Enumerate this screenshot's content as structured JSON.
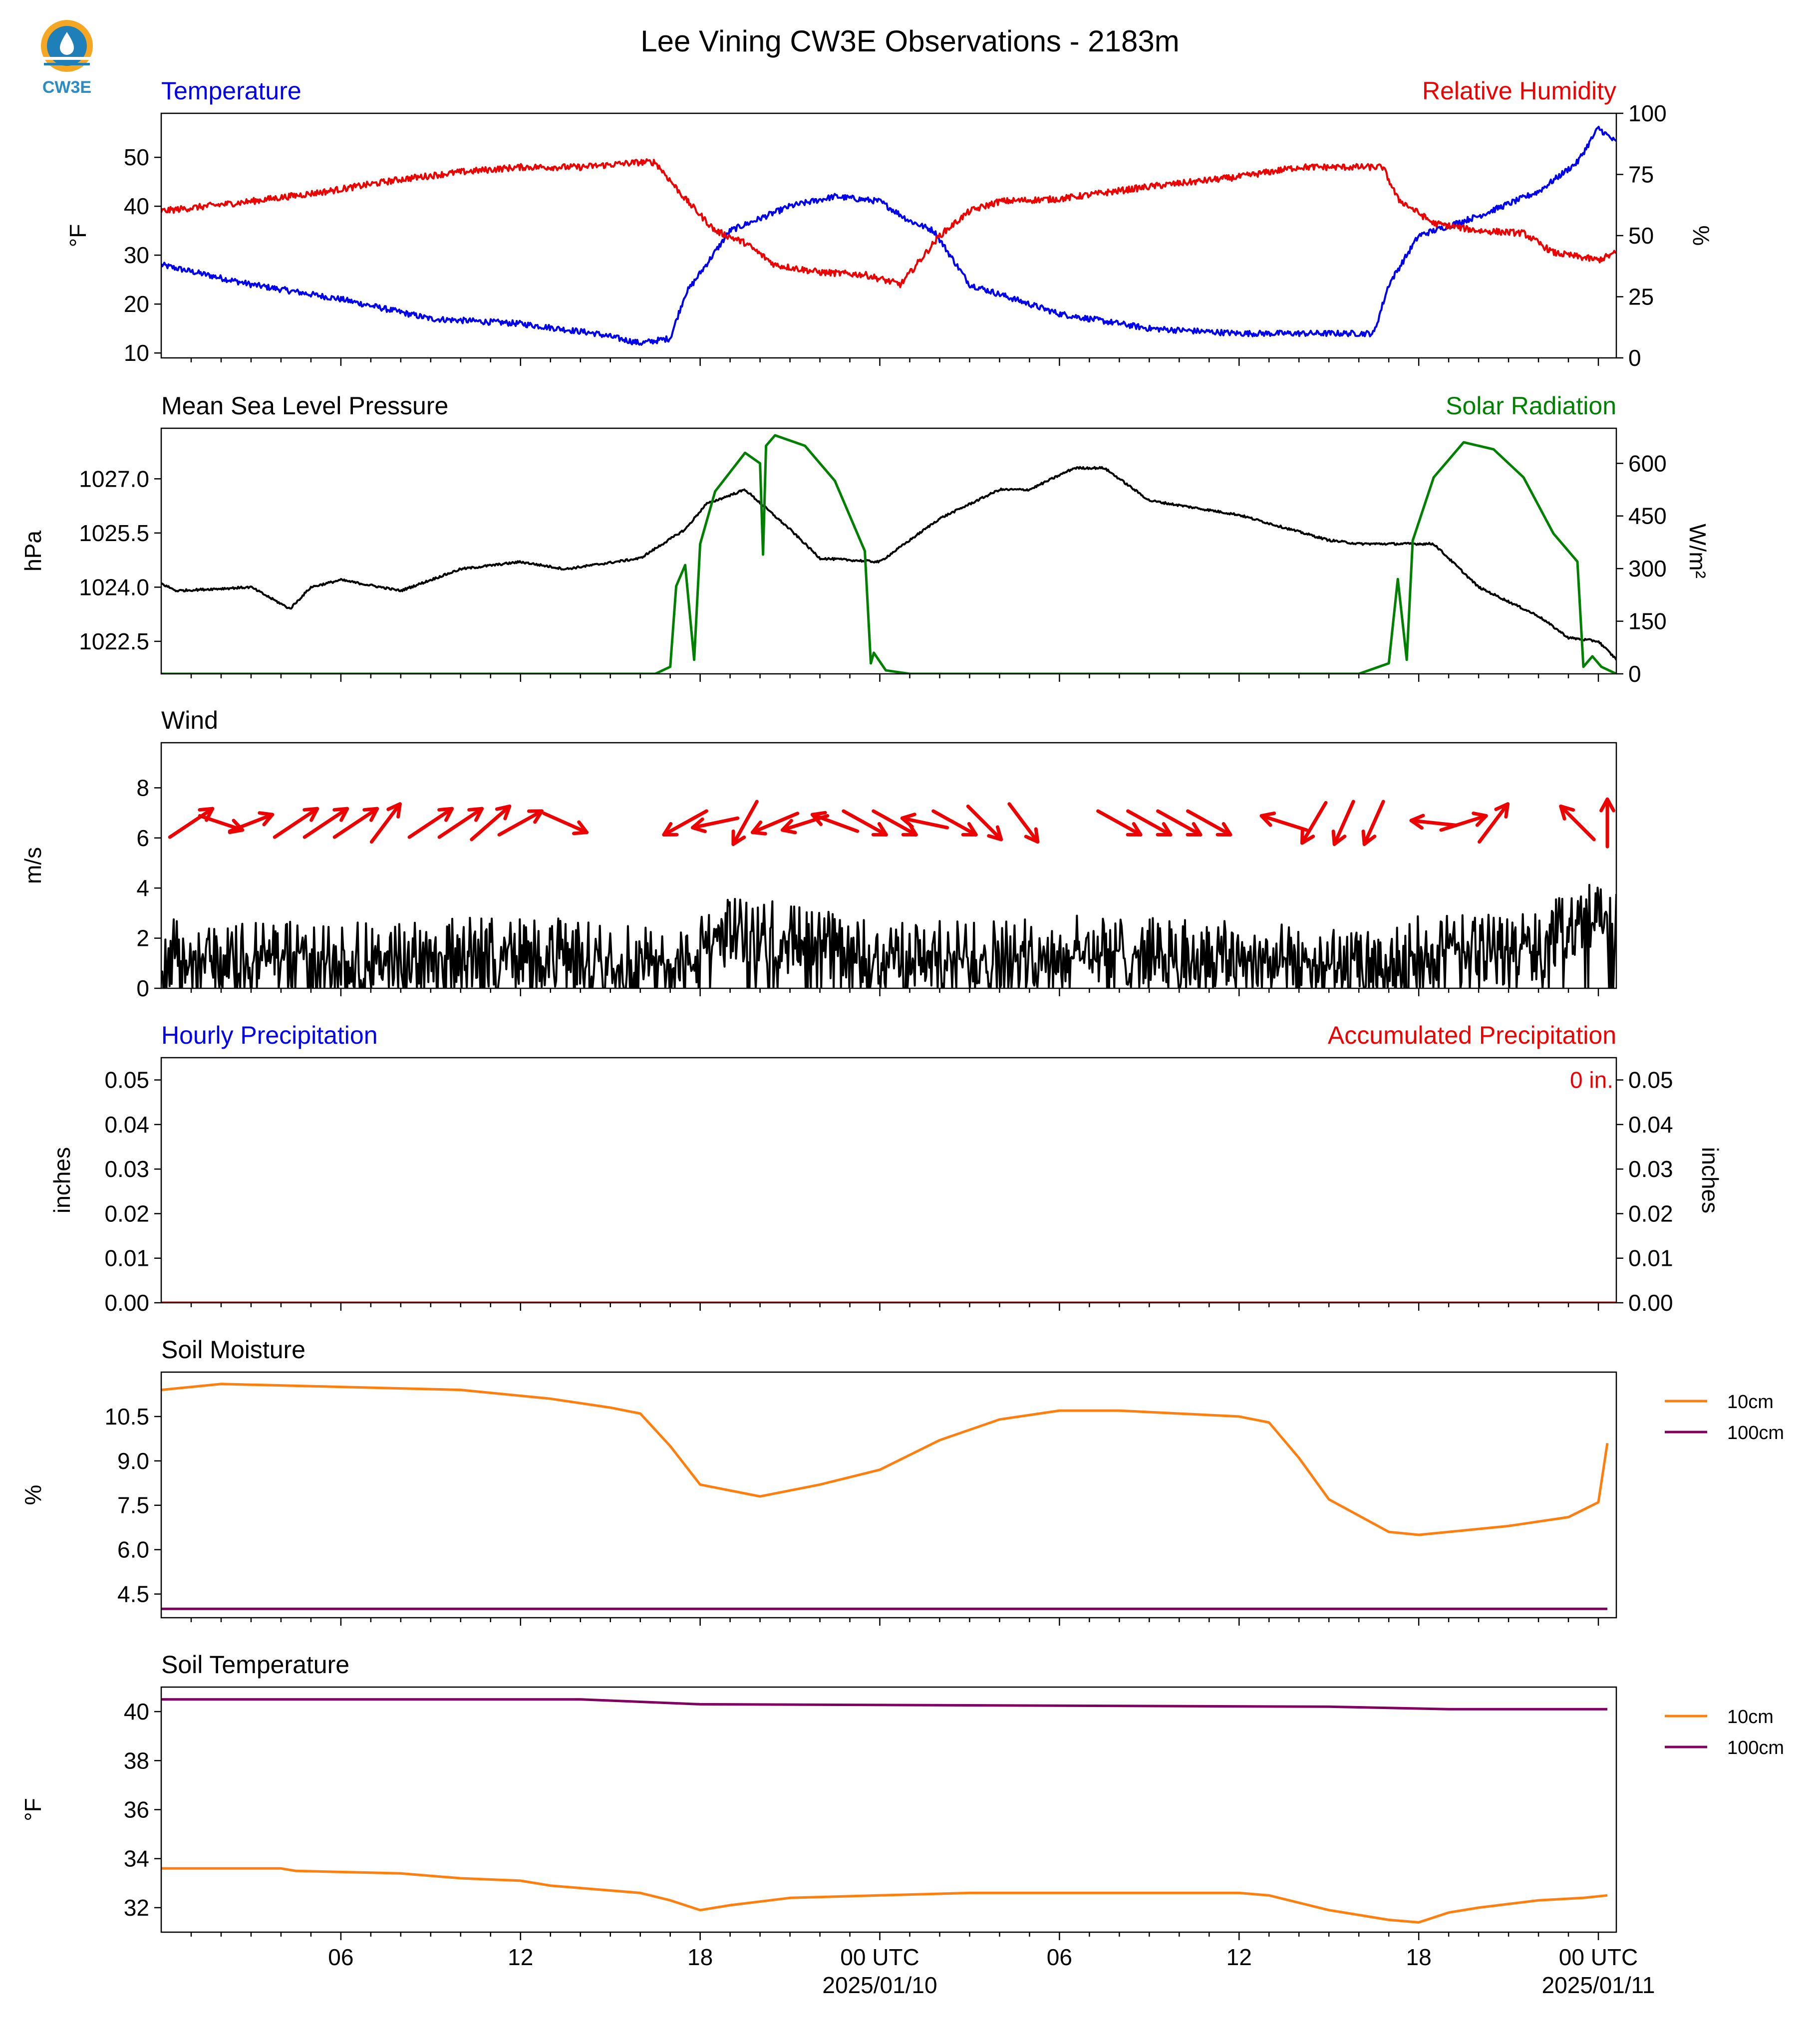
{
  "title": "Lee Vining CW3E Observations - 2183m",
  "logo": {
    "text": "CW3E",
    "icon": "cw3e-droplet-logo-icon"
  },
  "colors": {
    "blue": "#0000ee",
    "red": "#ee0000",
    "green": "#008000",
    "black": "#000000",
    "orange": "#ff7f0e",
    "purple": "#800060"
  },
  "x_axis": {
    "range_hours": [
      -24,
      24.6
    ],
    "ticks": [
      {
        "h": -18,
        "label": "06",
        "sub": ""
      },
      {
        "h": -12,
        "label": "12",
        "sub": ""
      },
      {
        "h": -6,
        "label": "18",
        "sub": ""
      },
      {
        "h": 0,
        "label": "00 UTC",
        "sub": "2025/01/10"
      },
      {
        "h": 6,
        "label": "06",
        "sub": ""
      },
      {
        "h": 12,
        "label": "12",
        "sub": ""
      },
      {
        "h": 18,
        "label": "18",
        "sub": ""
      },
      {
        "h": 24,
        "label": "00 UTC",
        "sub": "2025/01/11"
      }
    ]
  },
  "chart_data": [
    {
      "type": "line",
      "title_left": "Temperature",
      "title_right": "Relative Humidity",
      "ylabel_left": "°F",
      "ylabel_right": "%",
      "ylim_left": [
        9,
        59
      ],
      "ylim_right": [
        0,
        100
      ],
      "yticks_left": [
        10,
        20,
        30,
        40,
        50
      ],
      "yticks_right": [
        0,
        25,
        50,
        75,
        100
      ],
      "series": [
        {
          "axis": "left",
          "color": "#0000ee",
          "noise": 0.6,
          "x": [
            -24,
            -21,
            -18,
            -15,
            -12,
            -9.5,
            -8,
            -7,
            -6.5,
            -5,
            -3,
            -1.5,
            0,
            1,
            1.8,
            3,
            6,
            9,
            12,
            15,
            16.5,
            17,
            18,
            20,
            22,
            23.3,
            24,
            24.6
          ],
          "y": [
            28,
            24,
            21,
            17,
            16,
            14,
            12,
            13,
            22,
            35,
            40,
            42,
            41,
            37,
            35,
            24,
            18,
            15,
            14,
            14,
            14,
            24,
            34,
            38,
            43,
            49,
            56,
            53
          ]
        },
        {
          "axis": "right",
          "color": "#ee0000",
          "noise": 1.3,
          "x": [
            -24,
            -21,
            -18.5,
            -16,
            -14,
            -12,
            -10,
            -8,
            -7.5,
            -6.5,
            -5.5,
            -4.5,
            -3.5,
            -2,
            -0.5,
            0.7,
            2,
            3,
            4,
            6,
            9,
            12,
            14,
            15.5,
            16.8,
            17.3,
            18.5,
            20,
            21.5,
            22.5,
            24,
            24.6
          ],
          "y": [
            60,
            64,
            68,
            73,
            76,
            78,
            78,
            80,
            80,
            65,
            52,
            47,
            38,
            35,
            34,
            30,
            50,
            60,
            64,
            65,
            70,
            74,
            78,
            78,
            78,
            65,
            55,
            52,
            51,
            43,
            40,
            43
          ]
        }
      ]
    },
    {
      "type": "line",
      "title_left": "Mean Sea Level Pressure",
      "title_right": "Solar Radiation",
      "ylabel_left": "hPa",
      "ylabel_right": "W/m²",
      "ylim_left": [
        1021.6,
        1028.4
      ],
      "ylim_right": [
        0,
        700
      ],
      "yticks_left": [
        1022.5,
        1024.0,
        1025.5,
        1027.0
      ],
      "yticks_right": [
        0,
        150,
        300,
        450,
        600
      ],
      "series": [
        {
          "axis": "left",
          "color": "#000000",
          "noise": 0.03,
          "x": [
            -24,
            -23.5,
            -21,
            -19.7,
            -19,
            -18,
            -16,
            -14,
            -12,
            -10.5,
            -8,
            -6.5,
            -5.8,
            -4.5,
            -3,
            -2,
            0,
            2,
            4,
            5,
            6.5,
            7.5,
            9,
            12,
            15,
            16,
            18.5,
            20,
            22,
            23,
            24,
            24.6
          ],
          "y": [
            1024.1,
            1023.9,
            1024.0,
            1023.4,
            1024.0,
            1024.2,
            1023.9,
            1024.5,
            1024.7,
            1024.5,
            1024.8,
            1025.6,
            1026.3,
            1026.7,
            1025.6,
            1024.8,
            1024.7,
            1025.9,
            1026.7,
            1026.7,
            1027.3,
            1027.3,
            1026.4,
            1026.0,
            1025.3,
            1025.2,
            1025.2,
            1024.0,
            1023.2,
            1022.6,
            1022.5,
            1022.0
          ]
        },
        {
          "axis": "right",
          "color": "#008000",
          "noise": 0,
          "x": [
            -24,
            -7.5,
            -7,
            -6.8,
            -6.5,
            -6.2,
            -6.0,
            -5.5,
            -4.5,
            -4.0,
            -3.9,
            -3.8,
            -3.5,
            -2.5,
            -1.5,
            -0.5,
            -0.3,
            -0.2,
            0.2,
            1,
            16,
            17,
            17.3,
            17.6,
            17.8,
            18.5,
            19.5,
            20.5,
            21.5,
            22.5,
            23.3,
            23.5,
            23.8,
            24.1,
            24.6
          ],
          "y": [
            0,
            0,
            20,
            250,
            310,
            40,
            370,
            520,
            630,
            600,
            340,
            650,
            680,
            650,
            550,
            350,
            30,
            60,
            10,
            0,
            0,
            30,
            270,
            40,
            380,
            560,
            660,
            640,
            560,
            400,
            320,
            20,
            50,
            20,
            0
          ]
        }
      ]
    },
    {
      "type": "line",
      "title_left": "Wind",
      "ylabel_left": "m/s",
      "ylim_left": [
        0,
        9.8
      ],
      "yticks_left": [
        0,
        2,
        4,
        6,
        8
      ],
      "series": [
        {
          "axis": "left",
          "color": "#000000",
          "noise": 1.1,
          "floor": 0,
          "x": [
            -24,
            -18,
            -12,
            -7.5,
            -6.5,
            -5,
            -3,
            0,
            6,
            12,
            17,
            18,
            22,
            23.5,
            24.6
          ],
          "y": [
            1.4,
            1.2,
            1.5,
            1.0,
            1.0,
            2.4,
            2.0,
            1.2,
            1.5,
            1.3,
            0.8,
            1.5,
            1.6,
            3.0,
            2.5
          ]
        }
      ],
      "barbs": [
        {
          "h": -23,
          "u": 0.9,
          "v": 0.6
        },
        {
          "h": -22,
          "u": 0.9,
          "v": -0.3
        },
        {
          "h": -21,
          "u": 0.9,
          "v": 0.35
        },
        {
          "h": -19.5,
          "u": 0.9,
          "v": 0.6
        },
        {
          "h": -18.5,
          "u": 0.9,
          "v": 0.6
        },
        {
          "h": -17.5,
          "u": 0.9,
          "v": 0.6
        },
        {
          "h": -16.5,
          "u": 0.6,
          "v": 0.8
        },
        {
          "h": -15,
          "u": 0.9,
          "v": 0.6
        },
        {
          "h": -14,
          "u": 0.9,
          "v": 0.6
        },
        {
          "h": -13,
          "u": 0.8,
          "v": 0.7
        },
        {
          "h": -12,
          "u": 0.9,
          "v": 0.5
        },
        {
          "h": -10.5,
          "u": 0.9,
          "v": -0.4
        },
        {
          "h": -6.5,
          "u": -0.9,
          "v": -0.5
        },
        {
          "h": -5.5,
          "u": -0.95,
          "v": -0.2
        },
        {
          "h": -4.5,
          "u": -0.5,
          "v": -0.9
        },
        {
          "h": -3.5,
          "u": -0.95,
          "v": -0.4
        },
        {
          "h": -2.5,
          "u": -0.95,
          "v": -0.3
        },
        {
          "h": -1.5,
          "u": -0.95,
          "v": 0.35
        },
        {
          "h": -0.5,
          "u": 0.9,
          "v": -0.5
        },
        {
          "h": 0.5,
          "u": 0.9,
          "v": -0.5
        },
        {
          "h": 1.5,
          "u": -0.95,
          "v": 0.2
        },
        {
          "h": 2.5,
          "u": 0.9,
          "v": -0.5
        },
        {
          "h": 3.5,
          "u": 0.7,
          "v": -0.7
        },
        {
          "h": 4.8,
          "u": 0.6,
          "v": -0.8
        },
        {
          "h": 8,
          "u": 0.9,
          "v": -0.5
        },
        {
          "h": 9,
          "u": 0.9,
          "v": -0.5
        },
        {
          "h": 10,
          "u": 0.9,
          "v": -0.5
        },
        {
          "h": 11,
          "u": 0.9,
          "v": -0.5
        },
        {
          "h": 13.5,
          "u": -0.95,
          "v": 0.3
        },
        {
          "h": 14.5,
          "u": -0.5,
          "v": -0.85
        },
        {
          "h": 15.5,
          "u": -0.4,
          "v": -0.9
        },
        {
          "h": 16.5,
          "u": -0.4,
          "v": -0.9
        },
        {
          "h": 18.5,
          "u": -0.95,
          "v": 0.1
        },
        {
          "h": 19.5,
          "u": 0.95,
          "v": 0.3
        },
        {
          "h": 20.5,
          "u": 0.6,
          "v": 0.8
        },
        {
          "h": 23.3,
          "u": -0.7,
          "v": 0.7
        },
        {
          "h": 24.3,
          "u": 0,
          "v": 1
        }
      ]
    },
    {
      "type": "line",
      "title_left": "Hourly Precipitation",
      "title_right": "Accumulated Precipitation",
      "ylabel_left": "inches",
      "ylabel_right": "inches",
      "ylim_left": [
        0,
        0.055
      ],
      "ylim_right": [
        0,
        0.055
      ],
      "yticks_left": [
        0.0,
        0.01,
        0.02,
        0.03,
        0.04,
        0.05
      ],
      "yticks_right": [
        0.0,
        0.01,
        0.02,
        0.03,
        0.04,
        0.05
      ],
      "annotation": "0 in.",
      "series": [
        {
          "axis": "left",
          "color": "#ee0000",
          "noise": 0,
          "x": [
            -24,
            24.6
          ],
          "y": [
            0,
            0
          ]
        }
      ]
    },
    {
      "type": "line",
      "title_left": "Soil Moisture",
      "ylabel_left": "%",
      "ylim_left": [
        3.7,
        12.0
      ],
      "yticks_left": [
        4.5,
        6.0,
        7.5,
        9.0,
        10.5
      ],
      "series": [
        {
          "name": "10cm",
          "axis": "left",
          "color": "#ff7f0e",
          "noise": 0,
          "x": [
            -24,
            -22,
            -18,
            -14,
            -11,
            -9,
            -8,
            -7,
            -6,
            -4,
            -2,
            0,
            2,
            4,
            6,
            8,
            10,
            12,
            13,
            14,
            15,
            17,
            18,
            19,
            21,
            23,
            24,
            24.3
          ],
          "y": [
            11.4,
            11.6,
            11.5,
            11.4,
            11.1,
            10.8,
            10.6,
            9.5,
            8.2,
            7.8,
            8.2,
            8.7,
            9.7,
            10.4,
            10.7,
            10.7,
            10.6,
            10.5,
            10.3,
            9.1,
            7.7,
            6.6,
            6.5,
            6.6,
            6.8,
            7.1,
            7.6,
            9.6
          ]
        },
        {
          "name": "100cm",
          "axis": "left",
          "color": "#800060",
          "noise": 0,
          "x": [
            -24,
            24.3
          ],
          "y": [
            4.0,
            4.0
          ]
        }
      ],
      "legend": "right"
    },
    {
      "type": "line",
      "title_left": "Soil Temperature",
      "ylabel_left": "°F",
      "ylim_left": [
        31.0,
        41.0
      ],
      "yticks_left": [
        32,
        34,
        36,
        38,
        40
      ],
      "series": [
        {
          "name": "10cm",
          "axis": "left",
          "color": "#ff7f0e",
          "noise": 0,
          "x": [
            -24,
            -20,
            -19.5,
            -16,
            -14,
            -12,
            -11,
            -10,
            -8,
            -7,
            -6,
            -5,
            -3,
            0,
            3,
            6,
            9,
            12,
            13,
            15,
            17,
            18,
            19,
            20,
            22,
            23.5,
            24.3
          ],
          "y": [
            33.6,
            33.6,
            33.5,
            33.4,
            33.2,
            33.1,
            32.9,
            32.8,
            32.6,
            32.3,
            31.9,
            32.1,
            32.4,
            32.5,
            32.6,
            32.6,
            32.6,
            32.6,
            32.5,
            31.9,
            31.5,
            31.4,
            31.8,
            32.0,
            32.3,
            32.4,
            32.5
          ]
        },
        {
          "name": "100cm",
          "axis": "left",
          "color": "#800060",
          "noise": 0,
          "x": [
            -24,
            -10,
            -6,
            15,
            19,
            24.3
          ],
          "y": [
            40.5,
            40.5,
            40.3,
            40.2,
            40.1,
            40.1
          ]
        }
      ],
      "legend": "right"
    }
  ]
}
